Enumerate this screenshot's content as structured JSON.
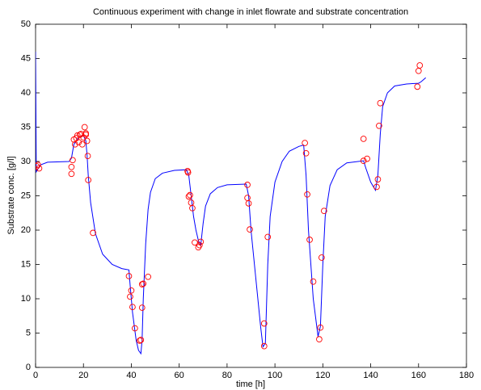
{
  "chart_data": {
    "type": "line",
    "title": "Continuous experiment with change in inlet flowrate and substrate concentration",
    "xlabel": "time [h]",
    "ylabel": "Substrate conc. [g/l]",
    "xlim": [
      0,
      180
    ],
    "xticks": [
      0,
      20,
      40,
      60,
      80,
      100,
      120,
      140,
      160,
      180
    ],
    "ylim": [
      0,
      50
    ],
    "yticks": [
      0,
      5,
      10,
      15,
      20,
      25,
      30,
      35,
      40,
      45,
      50
    ],
    "grid": false,
    "series": [
      {
        "color": "#0000ff",
        "markers": false,
        "x": [
          0,
          0.3,
          2,
          5,
          14,
          15,
          16,
          18,
          20,
          21,
          21.5,
          22,
          23,
          25,
          28,
          32,
          36,
          39,
          39.5,
          40.5,
          42,
          43,
          44,
          44.5,
          45,
          46,
          47,
          48,
          50,
          53,
          58,
          63,
          64,
          65,
          66,
          67,
          68,
          69,
          70,
          71,
          73,
          76,
          80,
          88,
          89,
          90,
          92,
          94,
          95,
          96,
          97,
          98,
          100,
          103,
          106,
          110,
          112,
          113,
          114,
          116,
          118,
          119,
          120,
          121,
          123,
          126,
          130,
          137,
          138,
          140,
          142,
          143,
          144,
          145,
          147,
          150,
          155,
          160,
          161,
          163
        ],
        "values": [
          46,
          28.5,
          29.5,
          29.9,
          30,
          30.5,
          32.5,
          33.5,
          33.8,
          33,
          31,
          28,
          24,
          19.5,
          16.5,
          15,
          14.4,
          14.2,
          12,
          8,
          4,
          2.5,
          2,
          4,
          10,
          18,
          23,
          25.5,
          27.5,
          28.3,
          28.7,
          28.8,
          28,
          25,
          22,
          20,
          18.5,
          17.8,
          21,
          23.5,
          25.3,
          26.2,
          26.6,
          26.7,
          25,
          20,
          13,
          6,
          3,
          3.5,
          15,
          22,
          27,
          30,
          31.5,
          32.2,
          32.4,
          28,
          20,
          10,
          4.5,
          6,
          15,
          22,
          26.5,
          28.8,
          29.8,
          30.1,
          29,
          27,
          25.8,
          28,
          34,
          38,
          40,
          41,
          41.3,
          41.4,
          41.6,
          42.2
        ]
      },
      {
        "color": "#ff0000",
        "markers": true,
        "x": [
          0.5,
          1,
          1.5,
          15,
          15,
          15.5,
          16,
          16.5,
          17,
          17.5,
          18,
          18.5,
          19,
          19.5,
          20,
          20.5,
          21,
          21,
          21.5,
          21.8,
          22,
          24,
          39,
          39.5,
          40,
          40.5,
          41.5,
          43.5,
          44,
          44.5,
          44.5,
          45,
          47,
          63.5,
          63.7,
          64,
          64.5,
          65,
          65.5,
          66.5,
          68,
          68.5,
          69,
          88.5,
          88.5,
          89,
          89.5,
          95.5,
          95.5,
          97,
          112.5,
          113,
          113.5,
          114.5,
          116,
          118.5,
          119,
          119.5,
          120.5,
          137,
          138.5,
          137,
          142.5,
          143,
          143.5,
          144,
          159.5,
          160,
          160.5
        ],
        "values": [
          29.3,
          29.5,
          29.0,
          28.2,
          29.2,
          30.2,
          33.2,
          32.5,
          33.4,
          33.8,
          32.8,
          33.9,
          34.0,
          32.5,
          33.5,
          35.0,
          34.1,
          33.9,
          33.0,
          30.8,
          27.3,
          19.6,
          13.3,
          10.3,
          11.2,
          8.8,
          5.7,
          3.9,
          4.0,
          8.7,
          12.1,
          12.2,
          13.2,
          28.6,
          28.4,
          24.9,
          25.1,
          24.0,
          23.2,
          18.2,
          17.5,
          17.8,
          18.3,
          26.6,
          24.7,
          23.9,
          20.1,
          6.4,
          3.1,
          19.0,
          32.7,
          31.2,
          25.2,
          18.6,
          12.5,
          4.1,
          5.8,
          16.0,
          22.8,
          33.3,
          30.4,
          30.1,
          26.3,
          27.4,
          35.2,
          38.5,
          40.9,
          43.2,
          44.0
        ]
      }
    ]
  }
}
